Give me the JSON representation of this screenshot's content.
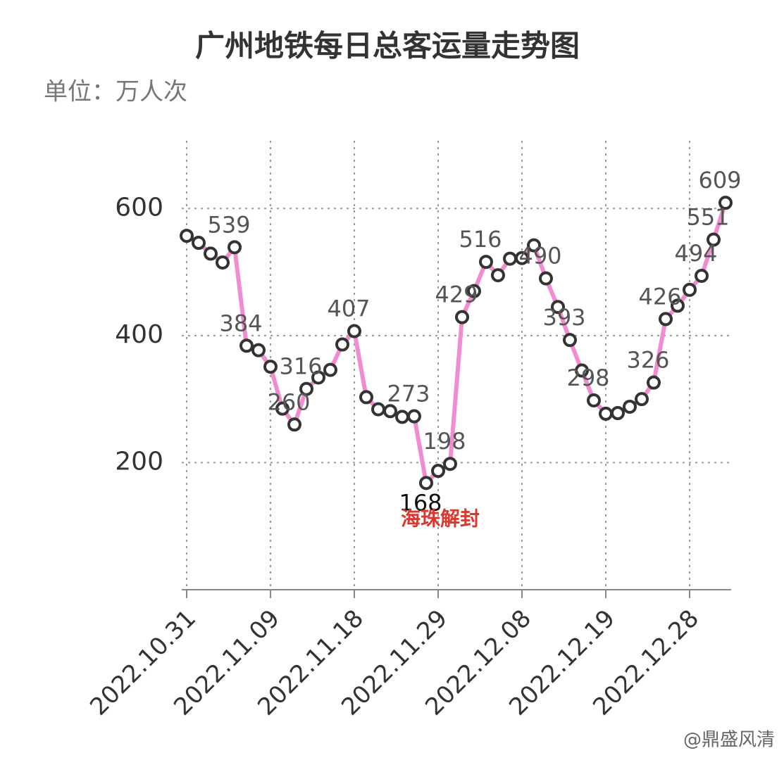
{
  "chart_data": {
    "type": "line",
    "title": "广州地铁每日总客运量走势图",
    "subtitle": "单位：万人次",
    "annotation": "海珠解封",
    "watermark": "@鼎盛风清",
    "categories": [
      "2022.10.31",
      null,
      null,
      null,
      null,
      null,
      null,
      "2022.11.09",
      null,
      null,
      null,
      null,
      null,
      null,
      "2022.11.18",
      null,
      null,
      null,
      null,
      null,
      null,
      "2022.11.29",
      null,
      null,
      null,
      null,
      null,
      null,
      "2022.12.08",
      null,
      null,
      null,
      null,
      null,
      null,
      "2022.12.19",
      null,
      null,
      null,
      null,
      null,
      null,
      "2022.12.28",
      null,
      null,
      null
    ],
    "values": [
      557,
      546,
      529,
      515,
      539,
      384,
      377,
      351,
      285,
      260,
      316,
      334,
      346,
      386,
      407,
      303,
      284,
      281,
      272,
      273,
      168,
      187,
      198,
      429,
      470,
      516,
      495,
      521,
      522,
      542,
      490,
      445,
      393,
      345,
      298,
      277,
      278,
      288,
      300,
      326,
      426,
      447,
      472,
      494,
      551,
      609
    ],
    "value_labels": [
      null,
      null,
      null,
      null,
      "539",
      "384",
      null,
      null,
      null,
      "260",
      "316",
      null,
      null,
      null,
      "407",
      null,
      null,
      null,
      null,
      "273",
      "168",
      null,
      "198",
      "429",
      null,
      "516",
      null,
      null,
      null,
      null,
      "490",
      null,
      "393",
      null,
      "298",
      null,
      null,
      null,
      null,
      "326",
      "426",
      null,
      null,
      "494",
      "551",
      "609"
    ],
    "color": "#f08ccf",
    "ylim": [
      0,
      700
    ],
    "yticks": [
      200,
      400,
      600
    ],
    "grid": true
  }
}
